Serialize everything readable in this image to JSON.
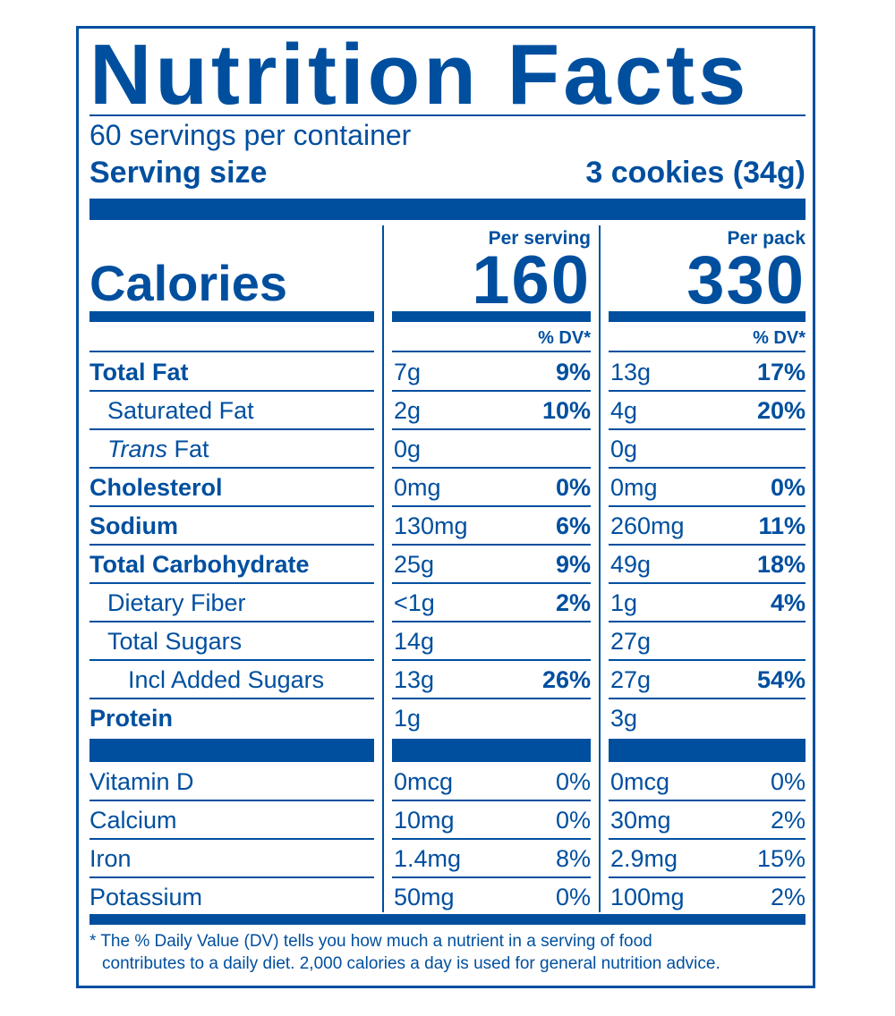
{
  "title": "Nutrition Facts",
  "servings_per_container": "60 servings per container",
  "serving_size_label": "Serving size",
  "serving_size_value": "3 cookies (34g)",
  "calories_label": "Calories",
  "per_serving_label": "Per serving",
  "per_pack_label": "Per pack",
  "calories_per_serving": "160",
  "calories_per_pack": "330",
  "dv_label": "% DV*",
  "nutrients": [
    {
      "name": "Total Fat",
      "serving_amount": "7g",
      "serving_dv": "9%",
      "pack_amount": "13g",
      "pack_dv": "17%"
    },
    {
      "name": "Saturated Fat",
      "serving_amount": "2g",
      "serving_dv": "10%",
      "pack_amount": "4g",
      "pack_dv": "20%"
    },
    {
      "name_italic": "Trans",
      "name": " Fat",
      "serving_amount": "0g",
      "serving_dv": "",
      "pack_amount": "0g",
      "pack_dv": ""
    },
    {
      "name": "Cholesterol",
      "serving_amount": "0mg",
      "serving_dv": "0%",
      "pack_amount": "0mg",
      "pack_dv": "0%"
    },
    {
      "name": "Sodium",
      "serving_amount": "130mg",
      "serving_dv": "6%",
      "pack_amount": "260mg",
      "pack_dv": "11%"
    },
    {
      "name": "Total Carbohydrate",
      "serving_amount": "25g",
      "serving_dv": "9%",
      "pack_amount": "49g",
      "pack_dv": "18%"
    },
    {
      "name": "Dietary Fiber",
      "serving_amount": "<1g",
      "serving_dv": "2%",
      "pack_amount": "1g",
      "pack_dv": "4%"
    },
    {
      "name": "Total Sugars",
      "serving_amount": "14g",
      "serving_dv": "",
      "pack_amount": "27g",
      "pack_dv": ""
    },
    {
      "name": "Incl Added Sugars",
      "serving_amount": "13g",
      "serving_dv": "26%",
      "pack_amount": "27g",
      "pack_dv": "54%"
    },
    {
      "name": "Protein",
      "serving_amount": "1g",
      "serving_dv": "",
      "pack_amount": "3g",
      "pack_dv": ""
    }
  ],
  "vitamins": [
    {
      "name": "Vitamin D",
      "serving_amount": "0mcg",
      "serving_dv": "0%",
      "pack_amount": "0mcg",
      "pack_dv": "0%"
    },
    {
      "name": "Calcium",
      "serving_amount": "10mg",
      "serving_dv": "0%",
      "pack_amount": "30mg",
      "pack_dv": "2%"
    },
    {
      "name": "Iron",
      "serving_amount": "1.4mg",
      "serving_dv": "8%",
      "pack_amount": "2.9mg",
      "pack_dv": "15%"
    },
    {
      "name": "Potassium",
      "serving_amount": "50mg",
      "serving_dv": "0%",
      "pack_amount": "100mg",
      "pack_dv": "2%"
    }
  ],
  "footnote_line1": "* The % Daily Value (DV) tells you how much a nutrient in a serving of food",
  "footnote_line2": "contributes to a daily diet. 2,000 calories a day is used for general nutrition advice.",
  "colors": {
    "ink": "#004f9f",
    "background": "#ffffff"
  }
}
